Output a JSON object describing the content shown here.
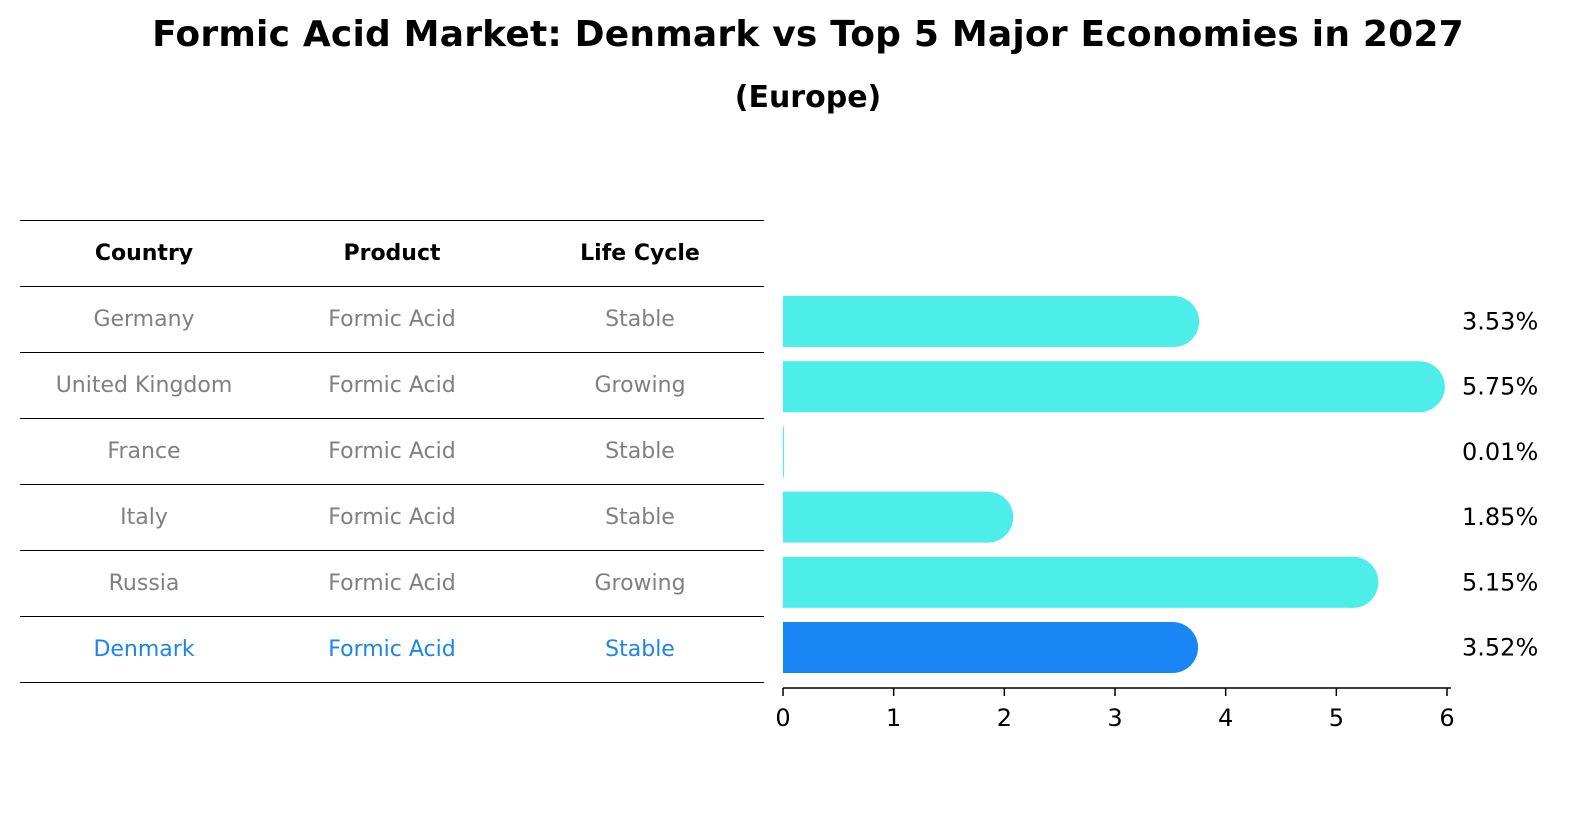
{
  "title": "Formic Acid Market: Denmark vs Top 5 Major Economies in 2027",
  "subtitle": "(Europe)",
  "table": {
    "headers": [
      "Country",
      "Product",
      "Life Cycle"
    ],
    "rows": [
      {
        "country": "Germany",
        "product": "Formic Acid",
        "life_cycle": "Stable"
      },
      {
        "country": "United Kingdom",
        "product": "Formic Acid",
        "life_cycle": "Growing"
      },
      {
        "country": "France",
        "product": "Formic Acid",
        "life_cycle": "Stable"
      },
      {
        "country": "Italy",
        "product": "Formic Acid",
        "life_cycle": "Stable"
      },
      {
        "country": "Russia",
        "product": "Formic Acid",
        "life_cycle": "Growing"
      },
      {
        "country": "Denmark",
        "product": "Formic Acid",
        "life_cycle": "Stable",
        "highlight": true
      }
    ]
  },
  "chart_data": {
    "type": "bar",
    "orientation": "horizontal",
    "categories": [
      "Germany",
      "United Kingdom",
      "France",
      "Italy",
      "Russia",
      "Denmark"
    ],
    "values": [
      3.53,
      5.75,
      0.01,
      1.85,
      5.15,
      3.52
    ],
    "data_labels": [
      "3.53%",
      "5.75%",
      "0.01%",
      "1.85%",
      "5.15%",
      "3.52%"
    ],
    "xlim": [
      0,
      6
    ],
    "xticks": [
      "0",
      "1",
      "2",
      "3",
      "4",
      "5",
      "6"
    ],
    "highlight_index": 5,
    "colors": {
      "default": "#4deeea",
      "highlight": "#1a86f5"
    },
    "grid": false
  }
}
